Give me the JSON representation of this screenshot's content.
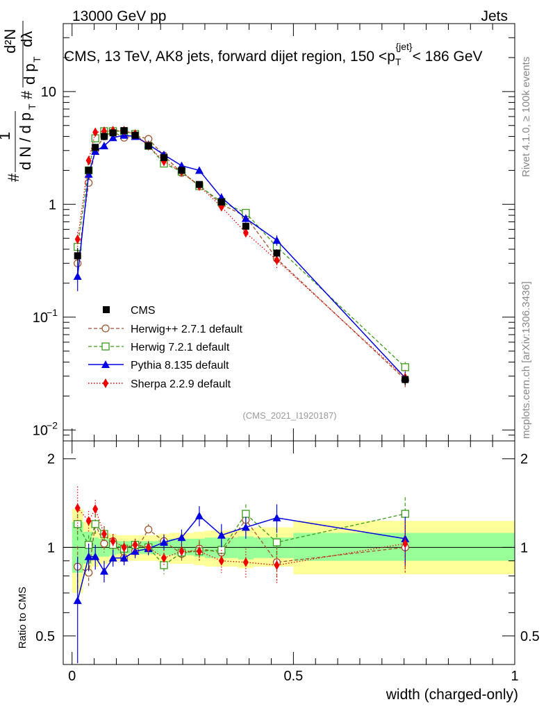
{
  "header": {
    "energy_label": "13000 GeV pp",
    "category_label": "Jets"
  },
  "side_labels": {
    "rivet": "Rivet 4.1.0, ≥ 100k events",
    "mcplots": "mcplots.cern.ch [arXiv:1306.3436]"
  },
  "colors": {
    "cms": "#000000",
    "herwigpp": "#a0522d",
    "herwig7": "#3a9a1a",
    "pythia": "#0000e0",
    "sherpa": "#ee0000",
    "band_inner": "#99ff99",
    "band_outer": "#ffff99"
  },
  "chart_data": [
    {
      "type": "line",
      "title": "CMS, 13 TeV, AK8 jets, forward dijet region, 150 <p_T^{jet}< 186 GeV",
      "title_main": "CMS, 13 TeV, AK8 jets, forward dijet region, 150 <p",
      "title_sup": "{jet}",
      "title_sub": "T",
      "title_tail": "< 186 GeV",
      "ylabel": "# 1/(dN/dp_T) d²N/(dp_T dλ)",
      "ylabel_parts": {
        "hash": "#",
        "one": "1",
        "d2n": "d²N",
        "den_left": "d N / d p",
        "den_right": "d p",
        "dlambda": "dλ",
        "sub_t": "T"
      },
      "yscale": "log",
      "ylim": [
        0.008,
        40
      ],
      "xlim": [
        -0.02,
        1.0
      ],
      "yticks": [
        {
          "value": 0.01,
          "label": "10",
          "exp": "−2"
        },
        {
          "value": 0.1,
          "label": "10",
          "exp": "−1"
        },
        {
          "value": 1,
          "label": "1",
          "exp": ""
        },
        {
          "value": 10,
          "label": "10",
          "exp": ""
        }
      ],
      "watermark": "(CMS_2021_I1920187)",
      "legend_position": "center-left",
      "series": [
        {
          "name": "CMS",
          "key": "cms",
          "marker": "square-filled",
          "linestyle": "none",
          "x": [
            0.0125,
            0.0375,
            0.0525,
            0.0725,
            0.0925,
            0.1175,
            0.1425,
            0.1725,
            0.2075,
            0.2475,
            0.2875,
            0.3375,
            0.3925,
            0.4625,
            0.7525
          ],
          "y": [
            0.35,
            2.0,
            3.2,
            4.0,
            4.3,
            4.5,
            4.1,
            3.3,
            2.6,
            2.0,
            1.5,
            1.05,
            0.64,
            0.37,
            0.028
          ],
          "err": [
            0.06,
            0.15,
            0.2,
            0.2,
            0.2,
            0.2,
            0.2,
            0.15,
            0.12,
            0.1,
            0.08,
            0.06,
            0.04,
            0.03,
            0.003
          ]
        },
        {
          "name": "Herwig++ 2.7.1 default",
          "key": "herwigpp",
          "marker": "circle-open",
          "linestyle": "dashed",
          "x": [
            0.0125,
            0.0375,
            0.0525,
            0.0725,
            0.0925,
            0.1175,
            0.1425,
            0.1725,
            0.2075,
            0.2475,
            0.2875,
            0.3375,
            0.3925,
            0.4625,
            0.7525
          ],
          "y": [
            0.3,
            1.55,
            3.05,
            4.0,
            4.4,
            3.9,
            4.05,
            3.8,
            2.7,
            1.9,
            1.48,
            1.0,
            0.78,
            0.33,
            0.028
          ],
          "err": [
            0.04,
            0.1,
            0.2,
            0.2,
            0.2,
            0.2,
            0.2,
            0.15,
            0.12,
            0.1,
            0.08,
            0.06,
            0.05,
            0.03,
            0.004
          ]
        },
        {
          "name": "Herwig 7.2.1 default",
          "key": "herwig7",
          "marker": "square-open",
          "linestyle": "dashed",
          "x": [
            0.0125,
            0.0375,
            0.0525,
            0.0725,
            0.0925,
            0.1175,
            0.1425,
            0.1725,
            0.2075,
            0.2475,
            0.2875,
            0.3375,
            0.3925,
            0.4625,
            0.7525
          ],
          "y": [
            0.42,
            2.0,
            3.85,
            4.45,
            4.45,
            4.45,
            4.2,
            3.3,
            2.3,
            1.95,
            1.45,
            1.05,
            0.84,
            0.42,
            0.036
          ],
          "err": [
            0.05,
            0.1,
            0.2,
            0.2,
            0.2,
            0.2,
            0.2,
            0.15,
            0.12,
            0.1,
            0.08,
            0.06,
            0.05,
            0.03,
            0.004
          ]
        },
        {
          "name": "Pythia 8.135 default",
          "key": "pythia",
          "marker": "triangle-filled",
          "linestyle": "solid",
          "x": [
            0.0125,
            0.0375,
            0.0525,
            0.0725,
            0.0925,
            0.1175,
            0.1425,
            0.1725,
            0.2075,
            0.2475,
            0.2875,
            0.3375,
            0.3925,
            0.4625,
            0.7525
          ],
          "y": [
            0.23,
            1.85,
            2.95,
            3.3,
            3.9,
            4.1,
            4.0,
            3.4,
            2.75,
            2.2,
            2.0,
            1.15,
            0.75,
            0.48,
            0.029
          ],
          "err": [
            0.06,
            0.2,
            0.2,
            0.2,
            0.2,
            0.2,
            0.2,
            0.15,
            0.12,
            0.1,
            0.1,
            0.1,
            0.06,
            0.05,
            0.004
          ]
        },
        {
          "name": "Sherpa 2.2.9 default",
          "key": "sherpa",
          "marker": "diamond-filled",
          "linestyle": "dotted",
          "x": [
            0.0125,
            0.0375,
            0.0525,
            0.0725,
            0.0925,
            0.1175,
            0.1425,
            0.1725,
            0.2075,
            0.2475,
            0.2875,
            0.3375,
            0.3925,
            0.4625,
            0.7525
          ],
          "y": [
            0.49,
            2.45,
            4.35,
            4.45,
            4.5,
            4.5,
            4.2,
            3.3,
            2.4,
            1.95,
            1.45,
            0.95,
            0.56,
            0.32,
            0.029
          ],
          "err": [
            0.08,
            0.2,
            0.3,
            0.25,
            0.2,
            0.2,
            0.2,
            0.15,
            0.12,
            0.1,
            0.08,
            0.08,
            0.06,
            0.05,
            0.005
          ]
        }
      ]
    },
    {
      "type": "line",
      "title": "",
      "xlabel": "width (charged-only)",
      "ylabel": "Ratio to CMS",
      "yscale": "log",
      "ylim": [
        0.4,
        2.3
      ],
      "xlim": [
        -0.02,
        1.0
      ],
      "xticks": [
        {
          "value": 0,
          "label": "0"
        },
        {
          "value": 0.5,
          "label": "0.5"
        },
        {
          "value": 1,
          "label": "1"
        }
      ],
      "yticks": [
        {
          "value": 0.5,
          "label": "0.5"
        },
        {
          "value": 1,
          "label": "1"
        },
        {
          "value": 2,
          "label": "2"
        }
      ],
      "bands": {
        "edges": [
          0.0,
          0.025,
          0.045,
          0.06,
          0.085,
          0.1,
          0.135,
          0.15,
          0.195,
          0.22,
          0.275,
          0.3,
          0.375,
          0.41,
          0.5,
          1.0
        ],
        "inner": [
          [
            0.82,
            1.22
          ],
          [
            0.88,
            1.13
          ],
          [
            0.92,
            1.08
          ],
          [
            0.93,
            1.07
          ],
          [
            0.94,
            1.06
          ],
          [
            0.95,
            1.05
          ],
          [
            0.95,
            1.05
          ],
          [
            0.95,
            1.05
          ],
          [
            0.94,
            1.06
          ],
          [
            0.94,
            1.07
          ],
          [
            0.93,
            1.07
          ],
          [
            0.92,
            1.08
          ],
          [
            0.91,
            1.09
          ],
          [
            0.92,
            1.08
          ],
          [
            0.9,
            1.12
          ]
        ],
        "outer": [
          [
            0.7,
            1.35
          ],
          [
            0.8,
            1.22
          ],
          [
            0.86,
            1.14
          ],
          [
            0.88,
            1.12
          ],
          [
            0.89,
            1.11
          ],
          [
            0.9,
            1.1
          ],
          [
            0.9,
            1.1
          ],
          [
            0.9,
            1.1
          ],
          [
            0.89,
            1.11
          ],
          [
            0.88,
            1.12
          ],
          [
            0.87,
            1.13
          ],
          [
            0.86,
            1.14
          ],
          [
            0.85,
            1.16
          ],
          [
            0.86,
            1.17
          ],
          [
            0.81,
            1.23
          ]
        ]
      },
      "series": [
        {
          "name": "Herwig++ 2.7.1 default",
          "key": "herwigpp",
          "marker": "circle-open",
          "linestyle": "dashed",
          "x": [
            0.0125,
            0.0375,
            0.0525,
            0.0725,
            0.0925,
            0.1175,
            0.1425,
            0.1725,
            0.2075,
            0.2475,
            0.2875,
            0.3375,
            0.3925,
            0.4625,
            0.7525
          ],
          "y": [
            0.86,
            0.82,
            1.2,
            1.03,
            1.05,
            0.92,
            0.97,
            1.15,
            1.05,
            0.95,
            0.99,
            0.96,
            1.24,
            0.89,
            1.0
          ],
          "err": [
            0.15,
            0.08,
            0.1,
            0.07,
            0.06,
            0.05,
            0.05,
            0.05,
            0.06,
            0.06,
            0.07,
            0.08,
            0.1,
            0.12,
            0.18
          ]
        },
        {
          "name": "Herwig 7.2.1 default",
          "key": "herwig7",
          "marker": "square-open",
          "linestyle": "dashed",
          "x": [
            0.0125,
            0.0375,
            0.0525,
            0.0725,
            0.0925,
            0.1175,
            0.1425,
            0.1725,
            0.2075,
            0.2475,
            0.2875,
            0.3375,
            0.3925,
            0.4625,
            0.7525
          ],
          "y": [
            1.2,
            1.02,
            1.2,
            1.11,
            1.02,
            0.99,
            1.02,
            1.0,
            0.87,
            0.96,
            0.97,
            0.98,
            1.3,
            1.04,
            1.3
          ],
          "err": [
            0.15,
            0.08,
            0.1,
            0.07,
            0.06,
            0.05,
            0.05,
            0.05,
            0.06,
            0.06,
            0.07,
            0.08,
            0.1,
            0.12,
            0.18
          ]
        },
        {
          "name": "Pythia 8.135 default",
          "key": "pythia",
          "marker": "triangle-filled",
          "linestyle": "solid",
          "x": [
            0.0125,
            0.0375,
            0.0525,
            0.0725,
            0.0925,
            0.1175,
            0.1425,
            0.1725,
            0.2075,
            0.2475,
            0.2875,
            0.3375,
            0.3925,
            0.4625,
            0.7525
          ],
          "y": [
            0.66,
            0.93,
            0.93,
            0.83,
            0.92,
            0.92,
            0.97,
            0.99,
            1.04,
            1.08,
            1.28,
            1.1,
            1.17,
            1.26,
            1.07
          ],
          "err": [
            0.27,
            0.1,
            0.09,
            0.07,
            0.06,
            0.05,
            0.05,
            0.05,
            0.06,
            0.07,
            0.1,
            0.1,
            0.1,
            0.14,
            0.2
          ]
        },
        {
          "name": "Sherpa 2.2.9 default",
          "key": "sherpa",
          "marker": "diamond-filled",
          "linestyle": "dotted",
          "x": [
            0.0125,
            0.0375,
            0.0525,
            0.0725,
            0.0925,
            0.1175,
            0.1425,
            0.1725,
            0.2075,
            0.2475,
            0.2875,
            0.3375,
            0.3925,
            0.4625,
            0.7525
          ],
          "y": [
            1.36,
            1.23,
            1.35,
            1.11,
            1.05,
            1.0,
            1.02,
            1.0,
            0.92,
            0.97,
            0.97,
            0.9,
            0.89,
            0.87,
            1.03
          ],
          "err": [
            0.25,
            0.1,
            0.1,
            0.07,
            0.06,
            0.05,
            0.05,
            0.05,
            0.06,
            0.06,
            0.07,
            0.08,
            0.1,
            0.12,
            0.2
          ]
        }
      ]
    }
  ]
}
